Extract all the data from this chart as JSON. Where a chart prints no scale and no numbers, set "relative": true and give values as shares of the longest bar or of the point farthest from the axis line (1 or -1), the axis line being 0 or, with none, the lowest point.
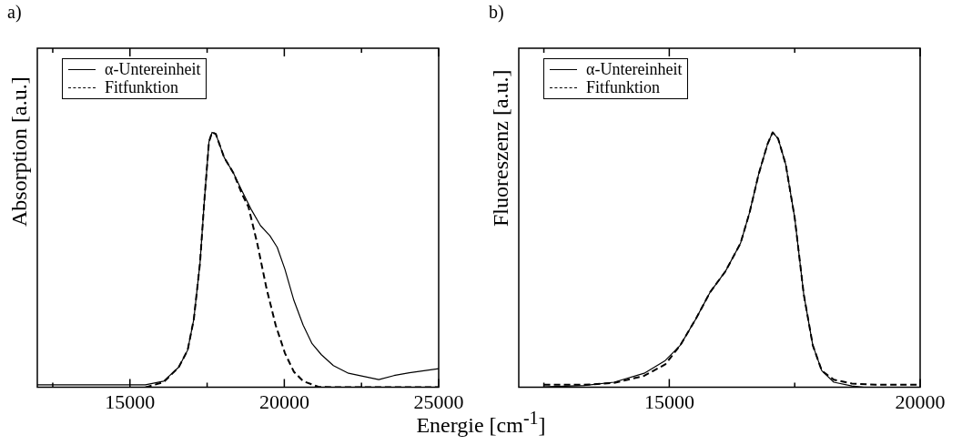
{
  "chart_data": [
    {
      "type": "line",
      "title": "a)",
      "xlabel": "Energie [cm$^{-1}$]",
      "ylabel": "Absorption [a.u.]",
      "relative": true,
      "legend": "top left",
      "grid": false,
      "marker": "none",
      "xlim": [
        12000,
        25000
      ],
      "xticks": [
        {
          "value": 12500,
          "label": null
        },
        15000,
        {
          "value": 17500,
          "label": null
        },
        20000,
        {
          "value": 22500,
          "label": null
        },
        25000
      ],
      "series": [
        {
          "name": "α-Untereinheit",
          "color": "#000000",
          "line_style": "solid",
          "x": [
            12000,
            13730,
            15500,
            16090,
            16580,
            16870,
            17070,
            17270,
            17410,
            17560,
            17660,
            17780,
            18050,
            18350,
            18640,
            18940,
            19230,
            19530,
            19770,
            20020,
            20310,
            20610,
            20900,
            21200,
            21590,
            22080,
            22570,
            23060,
            23550,
            24050,
            25000
          ],
          "values": [
            0.01,
            0.01,
            0.01,
            0.024,
            0.079,
            0.146,
            0.268,
            0.488,
            0.732,
            0.963,
            1.0,
            0.994,
            0.902,
            0.841,
            0.768,
            0.695,
            0.634,
            0.595,
            0.549,
            0.463,
            0.341,
            0.244,
            0.171,
            0.128,
            0.085,
            0.055,
            0.043,
            0.03,
            0.046,
            0.057,
            0.073
          ]
        },
        {
          "name": "Fitfunktion",
          "color": "#000000",
          "line_style": "dashed",
          "x": [
            15500,
            16090,
            16580,
            16870,
            17070,
            17270,
            17410,
            17560,
            17660,
            17780,
            18050,
            18350,
            18640,
            18840,
            19130,
            19420,
            19720,
            20020,
            20310,
            20610,
            21100,
            21590,
            25000
          ],
          "values": [
            0.0,
            0.02,
            0.079,
            0.146,
            0.268,
            0.488,
            0.732,
            0.963,
            1.0,
            0.994,
            0.902,
            0.841,
            0.756,
            0.707,
            0.561,
            0.39,
            0.244,
            0.134,
            0.061,
            0.024,
            0.002,
            0,
            0
          ]
        }
      ]
    },
    {
      "type": "line",
      "title": "b)",
      "ylabel": "Fluoreszenz [a.u.]",
      "relative": true,
      "legend": "top left",
      "grid": false,
      "marker": "none",
      "xlim": [
        12000,
        20000
      ],
      "xticks": [
        {
          "value": 12500,
          "label": null
        },
        15000,
        {
          "value": 17500,
          "label": null
        },
        20000
      ],
      "series": [
        {
          "name": "α-Untereinheit",
          "color": "#000000",
          "line_style": "solid",
          "x": [
            12500,
            13300,
            13900,
            14500,
            14920,
            15220,
            15520,
            15820,
            16120,
            16420,
            16600,
            16780,
            16960,
            17060,
            17170,
            17320,
            17500,
            17680,
            17860,
            18040,
            18280,
            18640,
            18880
          ],
          "values": [
            0.002,
            0.007,
            0.02,
            0.055,
            0.105,
            0.165,
            0.265,
            0.375,
            0.455,
            0.565,
            0.685,
            0.835,
            0.955,
            1.0,
            0.975,
            0.875,
            0.665,
            0.365,
            0.165,
            0.065,
            0.02,
            0.005,
            0
          ]
        },
        {
          "name": "Fitfunktion",
          "color": "#000000",
          "line_style": "dashed",
          "x": [
            12500,
            13300,
            13900,
            14500,
            14920,
            15220,
            15520,
            15820,
            16120,
            16420,
            16600,
            16780,
            16960,
            17060,
            17170,
            17320,
            17500,
            17680,
            17860,
            18040,
            18280,
            18640,
            19120,
            20000
          ],
          "values": [
            0.01,
            0.01,
            0.017,
            0.045,
            0.09,
            0.165,
            0.265,
            0.375,
            0.455,
            0.565,
            0.685,
            0.835,
            0.955,
            1.0,
            0.975,
            0.875,
            0.665,
            0.365,
            0.165,
            0.065,
            0.03,
            0.015,
            0.01,
            0.01
          ]
        }
      ]
    }
  ]
}
